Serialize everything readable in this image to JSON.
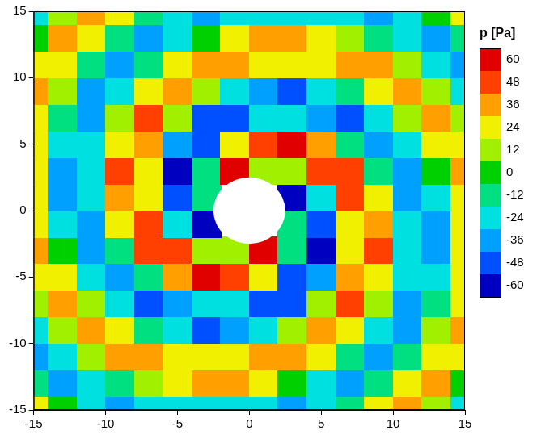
{
  "chart_data": {
    "type": "heatmap",
    "x": [
      -15,
      -13,
      -11,
      -9,
      -7,
      -5,
      -3,
      -1,
      1,
      3,
      5,
      7,
      9,
      11,
      13,
      15
    ],
    "y": [
      -15,
      -13,
      -11,
      -9,
      -7,
      -5,
      -3,
      -1,
      1,
      3,
      5,
      7,
      9,
      11,
      13,
      15
    ],
    "z": [
      [
        24,
        0,
        -24,
        -36,
        -24,
        -24,
        -24,
        -24,
        -24,
        -36,
        -24,
        -12,
        24,
        36,
        12,
        -24
      ],
      [
        -12,
        -36,
        -24,
        -12,
        12,
        24,
        36,
        36,
        24,
        0,
        -24,
        -36,
        -12,
        24,
        36,
        0
      ],
      [
        -36,
        -24,
        12,
        36,
        36,
        24,
        24,
        24,
        36,
        36,
        24,
        -12,
        -36,
        -12,
        24,
        24
      ],
      [
        -24,
        12,
        36,
        24,
        -12,
        -24,
        -48,
        -36,
        -24,
        12,
        36,
        24,
        -24,
        -36,
        12,
        36
      ],
      [
        12,
        36,
        12,
        -24,
        -48,
        -36,
        -24,
        -24,
        -48,
        -48,
        12,
        48,
        12,
        -36,
        -12,
        24
      ],
      [
        24,
        24,
        -24,
        -36,
        -12,
        36,
        60,
        48,
        24,
        -48,
        -36,
        36,
        24,
        -24,
        -24,
        24
      ],
      [
        36,
        0,
        -36,
        -12,
        48,
        48,
        12,
        12,
        60,
        -12,
        -60,
        24,
        48,
        -24,
        -36,
        24
      ],
      [
        24,
        -24,
        -36,
        24,
        48,
        -24,
        -60,
        null,
        null,
        -12,
        -48,
        24,
        36,
        -24,
        -36,
        24
      ],
      [
        24,
        -36,
        -24,
        36,
        24,
        -48,
        -12,
        null,
        null,
        -60,
        -24,
        48,
        24,
        -36,
        -24,
        24
      ],
      [
        24,
        -36,
        -24,
        48,
        24,
        -60,
        -12,
        60,
        12,
        12,
        48,
        48,
        -12,
        -36,
        0,
        36
      ],
      [
        24,
        -24,
        -24,
        24,
        36,
        -36,
        -48,
        24,
        48,
        60,
        36,
        -12,
        -36,
        -24,
        24,
        24
      ],
      [
        24,
        -12,
        -36,
        12,
        48,
        12,
        -48,
        -48,
        -24,
        -24,
        -36,
        -48,
        -24,
        12,
        36,
        12
      ],
      [
        36,
        12,
        -36,
        -24,
        24,
        36,
        12,
        -24,
        -36,
        -48,
        -24,
        -12,
        24,
        36,
        12,
        -24
      ],
      [
        24,
        24,
        -12,
        -36,
        -12,
        24,
        36,
        36,
        24,
        24,
        24,
        36,
        36,
        12,
        -24,
        -36
      ],
      [
        0,
        36,
        24,
        -12,
        -36,
        -24,
        0,
        24,
        36,
        36,
        24,
        12,
        -12,
        -24,
        -36,
        -12
      ],
      [
        -24,
        12,
        36,
        24,
        -12,
        -24,
        -36,
        -24,
        -24,
        -24,
        -24,
        -24,
        -36,
        -24,
        0,
        24
      ]
    ],
    "xlim": [
      -15,
      15
    ],
    "ylim": [
      -15,
      15
    ],
    "xticks": [
      -15,
      -10,
      -5,
      0,
      5,
      10,
      15
    ],
    "yticks": [
      -15,
      -10,
      -5,
      0,
      5,
      10,
      15
    ],
    "grid": false,
    "hole_center": [
      0,
      0
    ],
    "hole_radius": 2.5,
    "colorbar": {
      "title": "p [Pa]",
      "range": [
        -60,
        60
      ],
      "ticks": [
        60,
        48,
        36,
        24,
        12,
        0,
        -12,
        -24,
        -36,
        -48,
        -60
      ],
      "colors": [
        "#e00000",
        "#ff4000",
        "#ffa000",
        "#f0f000",
        "#a0f000",
        "#00d000",
        "#00e080",
        "#00e0e0",
        "#00a0ff",
        "#0050ff",
        "#0000c0"
      ]
    }
  }
}
